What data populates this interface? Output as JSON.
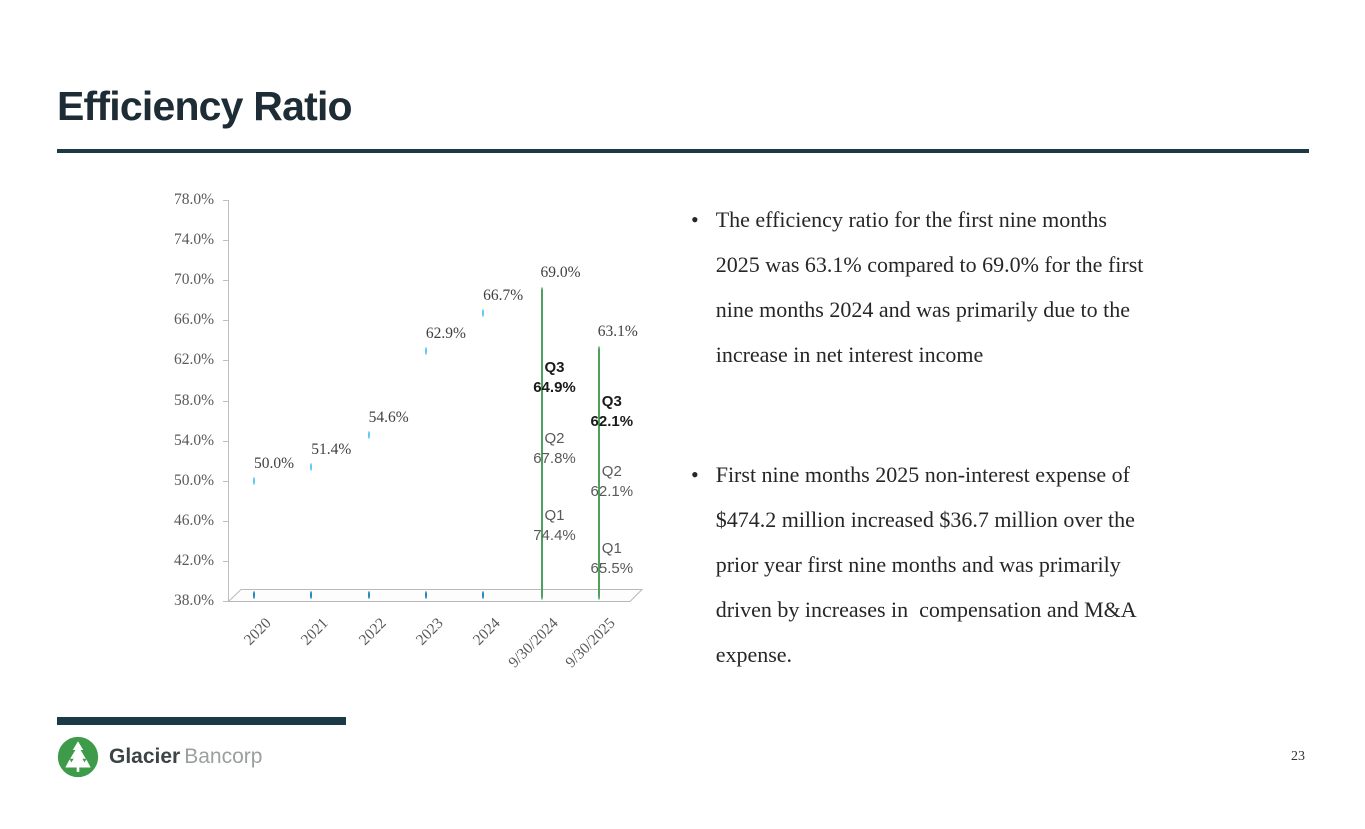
{
  "slide": {
    "title": "Efficiency Ratio",
    "page_number": "23",
    "bullet_marker": "•"
  },
  "logo": {
    "brand_bold": "Glacier",
    "brand_light": "Bancorp"
  },
  "bullets": [
    {
      "lines": [
        "The efficiency ratio for the first nine months",
        "2025 was 63.1% compared to 69.0% for the first",
        "nine months 2024 and was primarily due to the",
        "increase in net interest income"
      ]
    },
    {
      "lines": [
        "First nine months 2025 non-interest expense of",
        "$474.2 million increased $36.7 million over the",
        "prior year first nine months and was primarily",
        "driven by increases in  compensation and M&A",
        "expense."
      ]
    }
  ],
  "chart_data": {
    "type": "bar",
    "title": "",
    "xlabel": "",
    "ylabel": "",
    "categories": [
      "2020",
      "2021",
      "2022",
      "2023",
      "2024",
      "9/30/2024",
      "9/30/2025"
    ],
    "values": [
      50.0,
      51.4,
      54.6,
      62.9,
      66.7,
      69.0,
      63.1
    ],
    "value_labels": [
      "50.0%",
      "51.4%",
      "54.6%",
      "62.9%",
      "66.7%",
      "69.0%",
      "63.1%"
    ],
    "bar_styles": [
      "blue",
      "blue",
      "blue",
      "blue",
      "blue",
      "green",
      "green"
    ],
    "ylim": [
      38.0,
      78.0
    ],
    "ytick_step": 4.0,
    "ytick_labels": [
      "78.0%",
      "74.0%",
      "70.0%",
      "66.0%",
      "62.0%",
      "58.0%",
      "54.0%",
      "50.0%",
      "46.0%",
      "42.0%",
      "38.0%"
    ],
    "gridlines": false,
    "legend": false,
    "colors": {
      "bar_blue": "#2fa8dc",
      "bar_green": "#93dba8",
      "bar_green_border": "#4ea05f",
      "axis_text": "#595959",
      "value_label_text": "#404040"
    },
    "quarter_annotations": [
      {
        "category": "9/30/2024",
        "category_index": 5,
        "entries": [
          {
            "quarter": "Q3",
            "value": "64.9%",
            "center_value": 60.2,
            "color": "#1a1a1a",
            "bold": true
          },
          {
            "quarter": "Q2",
            "value": "67.8%",
            "center_value": 53.2,
            "color": "#595959",
            "bold": false
          },
          {
            "quarter": "Q1",
            "value": "74.4%",
            "center_value": 45.5,
            "color": "#595959",
            "bold": false
          }
        ]
      },
      {
        "category": "9/30/2025",
        "category_index": 6,
        "entries": [
          {
            "quarter": "Q3",
            "value": "62.1%",
            "center_value": 56.9,
            "color": "#1a1a1a",
            "bold": true
          },
          {
            "quarter": "Q2",
            "value": "62.1%",
            "center_value": 49.9,
            "color": "#595959",
            "bold": false
          },
          {
            "quarter": "Q1",
            "value": "65.5%",
            "center_value": 42.2,
            "color": "#595959",
            "bold": false
          }
        ]
      }
    ]
  },
  "theme_colors": {
    "title_text": "#1d2c35",
    "accent_rule": "#1c3a45",
    "body_text": "#262626",
    "logo_green": "#3e9b49"
  }
}
